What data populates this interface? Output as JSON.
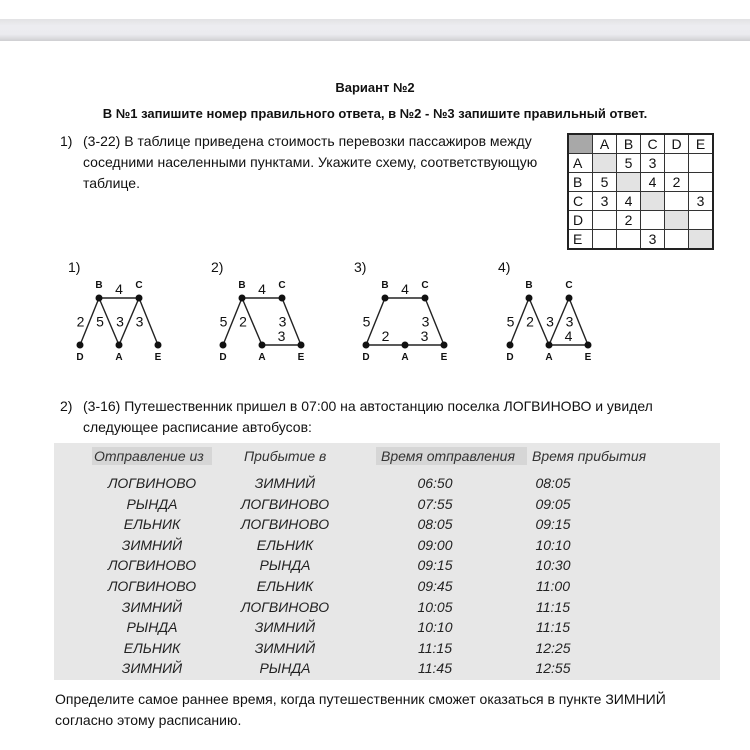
{
  "document": {
    "title": "Вариант №2",
    "instructions": "В №1 запишите номер правильного ответа, в №2 - №3 запишите правильный ответ.",
    "q1": {
      "number": "1)",
      "line1": "(3-22) В таблице приведена стоимость перевозки пассажиров между",
      "line2": "соседними населенными пунктами. Укажите схему, соответствующую",
      "line3": "таблице.",
      "cost_table": {
        "headers": [
          "",
          "A",
          "B",
          "C",
          "D",
          "E"
        ],
        "rows": [
          [
            "A",
            "",
            "5",
            "3",
            "",
            ""
          ],
          [
            "B",
            "5",
            "",
            "4",
            "2",
            ""
          ],
          [
            "C",
            "3",
            "4",
            "",
            "",
            "3"
          ],
          [
            "D",
            "",
            "2",
            "",
            "",
            ""
          ],
          [
            "E",
            "",
            "",
            "3",
            "",
            ""
          ]
        ]
      },
      "options": [
        {
          "label": "1)",
          "edges": [
            [
              "B",
              "C",
              "4"
            ],
            [
              "B",
              "D",
              "2"
            ],
            [
              "B",
              "A",
              "5"
            ],
            [
              "C",
              "A",
              "3"
            ],
            [
              "C",
              "E",
              "3"
            ]
          ]
        },
        {
          "label": "2)",
          "edges": [
            [
              "B",
              "C",
              "4"
            ],
            [
              "B",
              "D",
              "5"
            ],
            [
              "B",
              "A",
              "2"
            ],
            [
              "A",
              "E",
              "3"
            ],
            [
              "C",
              "E",
              "3"
            ]
          ]
        },
        {
          "label": "3)",
          "edges": [
            [
              "B",
              "C",
              "4"
            ],
            [
              "B",
              "D",
              "5"
            ],
            [
              "D",
              "A",
              "2"
            ],
            [
              "A",
              "E",
              "3"
            ],
            [
              "C",
              "E",
              "3"
            ]
          ]
        },
        {
          "label": "4)",
          "edges": [
            [
              "B",
              "D",
              "5"
            ],
            [
              "B",
              "A",
              "2"
            ],
            [
              "C",
              "A",
              "3"
            ],
            [
              "C",
              "E",
              "3"
            ],
            [
              "A",
              "E",
              "4"
            ]
          ]
        }
      ],
      "node_labels": [
        "B",
        "C",
        "D",
        "A",
        "E"
      ]
    },
    "q2": {
      "number": "2)",
      "line1": "(3-16) Путешественник пришел в 07:00 на автостанцию поселка ЛОГВИНОВО и увидел",
      "line2": "следующее расписание автобусов:",
      "schedule": {
        "headers": [
          "Отправление из",
          "Прибытие в",
          "Время отправления",
          "Время прибытия"
        ],
        "rows": [
          [
            "ЛОГВИНОВО",
            "ЗИМНИЙ",
            "06:50",
            "08:05"
          ],
          [
            "РЫНДА",
            "ЛОГВИНОВО",
            "07:55",
            "09:05"
          ],
          [
            "ЕЛЬНИК",
            "ЛОГВИНОВО",
            "08:05",
            "09:15"
          ],
          [
            "ЗИМНИЙ",
            "ЕЛЬНИК",
            "09:00",
            "10:10"
          ],
          [
            "ЛОГВИНОВО",
            "РЫНДА",
            "09:15",
            "10:30"
          ],
          [
            "ЛОГВИНОВО",
            "ЕЛЬНИК",
            "09:45",
            "11:00"
          ],
          [
            "ЗИМНИЙ",
            "ЛОГВИНОВО",
            "10:05",
            "11:15"
          ],
          [
            "РЫНДА",
            "ЗИМНИЙ",
            "10:10",
            "11:15"
          ],
          [
            "ЕЛЬНИК",
            "ЗИМНИЙ",
            "11:15",
            "12:25"
          ],
          [
            "ЗИМНИЙ",
            "РЫНДА",
            "11:45",
            "12:55"
          ]
        ]
      },
      "question_line1": "Определите самое раннее время, когда путешественник сможет оказаться в пункте ЗИМНИЙ",
      "question_line2": "согласно этому расписанию."
    }
  }
}
